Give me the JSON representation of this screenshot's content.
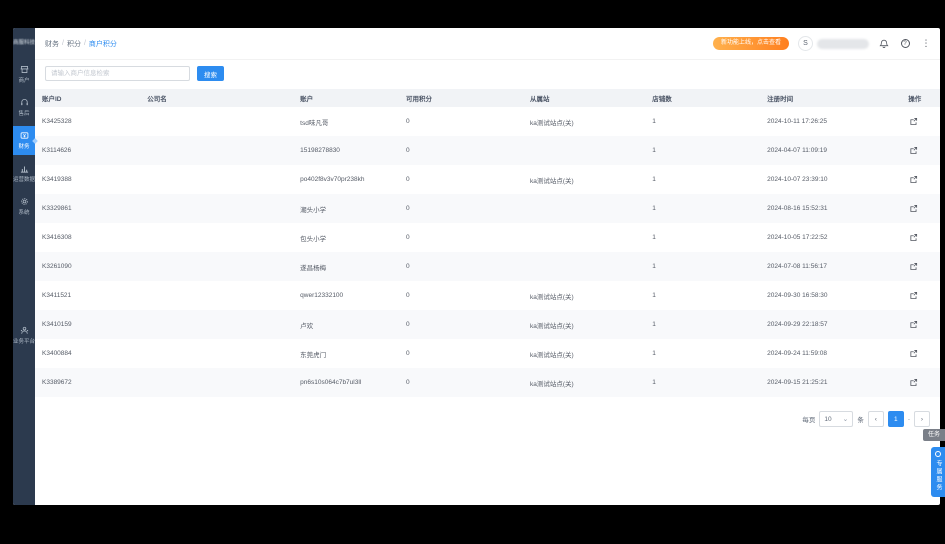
{
  "sidebar": {
    "logo_text": "商服科技",
    "items": [
      "商户",
      "售后",
      "财务",
      "运营数据",
      "系统"
    ],
    "bottom_item": "业务平台"
  },
  "header": {
    "breadcrumb": [
      "财务",
      "积分",
      "商户积分"
    ],
    "separator": "/",
    "promo_badge": "新功能上线，点击查看",
    "avatar_letter": "S"
  },
  "search": {
    "placeholder": "请输入商户信息检索",
    "button_label": "搜索"
  },
  "table": {
    "columns": [
      "账户ID",
      "公司名",
      "账户",
      "可用积分",
      "从属站",
      "店铺数",
      "注册时间",
      "操作"
    ],
    "rows": [
      [
        "K3425328",
        "",
        "tsd味凡哥",
        "0",
        "ka测试站点(关)",
        "1",
        "2024-10-11 17:26:25"
      ],
      [
        "K3114626",
        "",
        "15198278830",
        "0",
        "",
        "1",
        "2024-04-07 11:09:19"
      ],
      [
        "K3419388",
        "",
        "po402f8v3v70pr238kh",
        "0",
        "ka测试站点(关)",
        "1",
        "2024-10-07 23:39:10"
      ],
      [
        "K3329861",
        "",
        "潮头小学",
        "0",
        "",
        "1",
        "2024-08-16 15:52:31"
      ],
      [
        "K3416308",
        "",
        "包头小学",
        "0",
        "",
        "1",
        "2024-10-05 17:22:52"
      ],
      [
        "K3261090",
        "",
        "遂昌杨梅",
        "0",
        "",
        "1",
        "2024-07-08 11:56:17"
      ],
      [
        "K3411521",
        "",
        "qwer12332100",
        "0",
        "ka测试站点(关)",
        "1",
        "2024-09-30 16:58:30"
      ],
      [
        "K3410159",
        "",
        "卢欢",
        "0",
        "ka测试站点(关)",
        "1",
        "2024-09-29 22:18:57"
      ],
      [
        "K3400884",
        "",
        "东莞虎门",
        "0",
        "ka测试站点(关)",
        "1",
        "2024-09-24 11:59:08"
      ],
      [
        "K3389672",
        "",
        "pn6s10s064c7b7ul3ll",
        "0",
        "ka测试站点(关)",
        "1",
        "2024-09-15 21:25:21"
      ]
    ]
  },
  "pagination": {
    "per_page_prefix": "每页",
    "per_page_value": "10",
    "per_page_suffix": "条",
    "current_page": "1",
    "gap_dash": "-"
  },
  "floating": {
    "task_tag": "任务",
    "service_tab": "专属服务"
  },
  "icons": {
    "caret_down": "⌄",
    "chevron_left": "‹",
    "chevron_right": "›",
    "more_dots": "⋮",
    "question_mark": "?"
  },
  "colors": {
    "accent": "#2d8cf0",
    "sidebar_bg": "#2c3a4e",
    "promo_gradient_start": "#ffb14d",
    "promo_gradient_end": "#ff7f1f"
  }
}
